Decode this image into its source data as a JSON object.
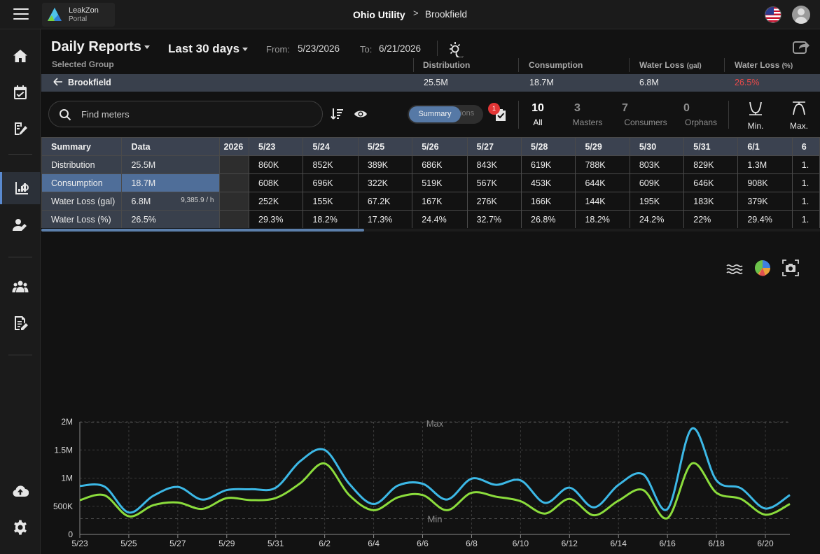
{
  "app": {
    "logo_name": "LeakZon",
    "logo_sub": "Portal",
    "breadcrumb": [
      "Ohio Utility",
      ">",
      "Brookfield"
    ]
  },
  "sidebar": {
    "items": [
      {
        "icon": "home-icon"
      },
      {
        "icon": "calendar-check-icon"
      },
      {
        "icon": "meter-edit-icon"
      },
      {
        "icon": "reports-chart-icon",
        "active": true
      },
      {
        "icon": "user-edit-icon"
      },
      {
        "icon": "group-icon"
      },
      {
        "icon": "document-edit-icon"
      },
      {
        "icon": "cloud-upload-icon"
      },
      {
        "icon": "settings-gear-icon"
      }
    ]
  },
  "header": {
    "title": "Daily Reports",
    "range": "Last 30 days",
    "from_label": "From:",
    "from_value": "5/23/2026",
    "to_label": "To:",
    "to_value": "6/21/2026"
  },
  "summary": {
    "selected_group_label": "Selected Group",
    "columns": {
      "distribution": "Distribution",
      "consumption": "Consumption",
      "water_loss_gal": "Water Loss",
      "water_loss_gal_unit": "(gal)",
      "water_loss_pct": "Water Loss",
      "water_loss_pct_unit": "(%)"
    },
    "group": {
      "name": "Brookfield",
      "distribution": "25.5M",
      "consumption": "18.7M",
      "water_loss_gal": "6.8M",
      "water_loss_pct": "26.5%"
    }
  },
  "toolbar": {
    "search_placeholder": "Find meters",
    "toggle_on": "Summary",
    "toggle_off": "tions",
    "task_badge": "1",
    "counts": [
      {
        "num": "10",
        "label": "All",
        "selected": true
      },
      {
        "num": "3",
        "label": "Masters"
      },
      {
        "num": "7",
        "label": "Consumers"
      },
      {
        "num": "0",
        "label": "Orphans"
      }
    ],
    "min_label": "Min.",
    "max_label": "Max."
  },
  "table": {
    "header": [
      "Summary",
      "Data",
      "2026",
      "5/23",
      "5/24",
      "5/25",
      "5/26",
      "5/27",
      "5/28",
      "5/29",
      "5/30",
      "5/31",
      "6/1",
      "6"
    ],
    "rows": [
      {
        "label": "Distribution",
        "data": "25.5M",
        "rate": "",
        "values": [
          "860K",
          "852K",
          "389K",
          "686K",
          "843K",
          "619K",
          "788K",
          "803K",
          "829K",
          "1.3M",
          "1."
        ]
      },
      {
        "label": "Consumption",
        "data": "18.7M",
        "rate": "",
        "active": true,
        "values": [
          "608K",
          "696K",
          "322K",
          "519K",
          "567K",
          "453K",
          "644K",
          "609K",
          "646K",
          "908K",
          "1."
        ]
      },
      {
        "label": "Water Loss (gal)",
        "data": "6.8M",
        "rate": "9,385.9 / h",
        "values": [
          "252K",
          "155K",
          "67.2K",
          "167K",
          "276K",
          "166K",
          "144K",
          "195K",
          "183K",
          "379K",
          "1."
        ]
      },
      {
        "label": "Water Loss (%)",
        "data": "26.5%",
        "rate": "",
        "values": [
          "29.3%",
          "18.2%",
          "17.3%",
          "24.4%",
          "32.7%",
          "26.8%",
          "18.2%",
          "24.2%",
          "22%",
          "29.4%",
          "1."
        ]
      }
    ]
  },
  "chart_tools": [
    "waves-icon",
    "pie-chart-icon",
    "camera-icon"
  ],
  "chart_data": {
    "type": "line",
    "x": [
      "5/23",
      "5/24",
      "5/25",
      "5/26",
      "5/27",
      "5/28",
      "5/29",
      "5/30",
      "5/31",
      "6/1",
      "6/2",
      "6/3",
      "6/4",
      "6/5",
      "6/6",
      "6/7",
      "6/8",
      "6/9",
      "6/10",
      "6/11",
      "6/12",
      "6/13",
      "6/14",
      "6/15",
      "6/16",
      "6/17",
      "6/18",
      "6/19",
      "6/20",
      "6/21"
    ],
    "x_tick_labels": [
      "5/23",
      "5/25",
      "5/27",
      "5/29",
      "5/31",
      "6/2",
      "6/4",
      "6/6",
      "6/8",
      "6/10",
      "6/12",
      "6/14",
      "6/16",
      "6/18",
      "6/20"
    ],
    "y_tick_labels": [
      "0",
      "500K",
      "1M",
      "1.5M",
      "2M"
    ],
    "ylim": [
      0,
      2000000
    ],
    "annotations": {
      "max_label": "Max",
      "min_label": "Min",
      "max_value": 1990000,
      "min_value": 280000
    },
    "series": [
      {
        "color": "#3cb8e6",
        "values": [
          860000,
          852000,
          389000,
          686000,
          843000,
          619000,
          788000,
          803000,
          829000,
          1300000,
          1500000,
          900000,
          540000,
          870000,
          900000,
          620000,
          990000,
          880000,
          960000,
          560000,
          830000,
          480000,
          880000,
          1070000,
          450000,
          1880000,
          960000,
          820000,
          460000,
          700000
        ]
      },
      {
        "color": "#8bdc3c",
        "values": [
          608000,
          696000,
          322000,
          519000,
          567000,
          453000,
          644000,
          609000,
          646000,
          908000,
          1260000,
          700000,
          430000,
          660000,
          700000,
          430000,
          740000,
          670000,
          590000,
          370000,
          630000,
          340000,
          600000,
          790000,
          290000,
          1260000,
          740000,
          630000,
          350000,
          540000
        ]
      }
    ],
    "grid": true
  }
}
